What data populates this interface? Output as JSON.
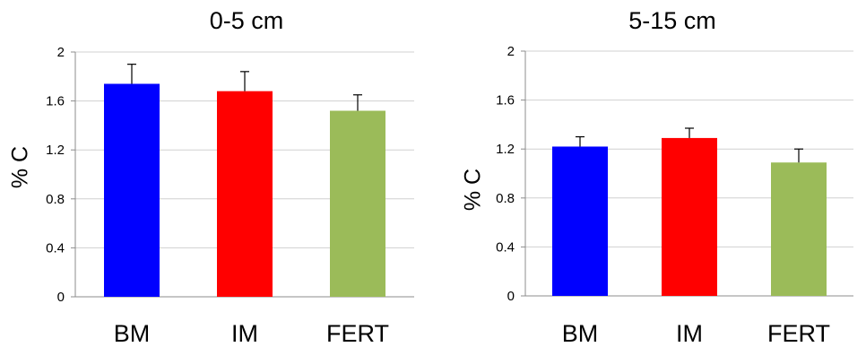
{
  "chart_data": [
    {
      "type": "bar",
      "title": "0-5 cm",
      "xlabel": "",
      "ylabel": "% C",
      "categories": [
        "BM",
        "IM",
        "FERT"
      ],
      "values": [
        1.74,
        1.68,
        1.52
      ],
      "errors": [
        0.16,
        0.16,
        0.13
      ],
      "colors": [
        "#0000ff",
        "#ff0000",
        "#9bbb59"
      ],
      "ylim": [
        0,
        2
      ],
      "yticks": [
        "0",
        "0.4",
        "0.8",
        "1.2",
        "1.6",
        "2"
      ],
      "grid": true,
      "legend": "none"
    },
    {
      "type": "bar",
      "title": "5-15 cm",
      "xlabel": "",
      "ylabel": "% C",
      "categories": [
        "BM",
        "IM",
        "FERT"
      ],
      "values": [
        1.22,
        1.29,
        1.09
      ],
      "errors": [
        0.08,
        0.08,
        0.11
      ],
      "colors": [
        "#0000ff",
        "#ff0000",
        "#9bbb59"
      ],
      "ylim": [
        0,
        2
      ],
      "yticks": [
        "0",
        "0.4",
        "0.8",
        "1.2",
        "1.6",
        "2"
      ],
      "grid": true,
      "legend": "none"
    }
  ]
}
